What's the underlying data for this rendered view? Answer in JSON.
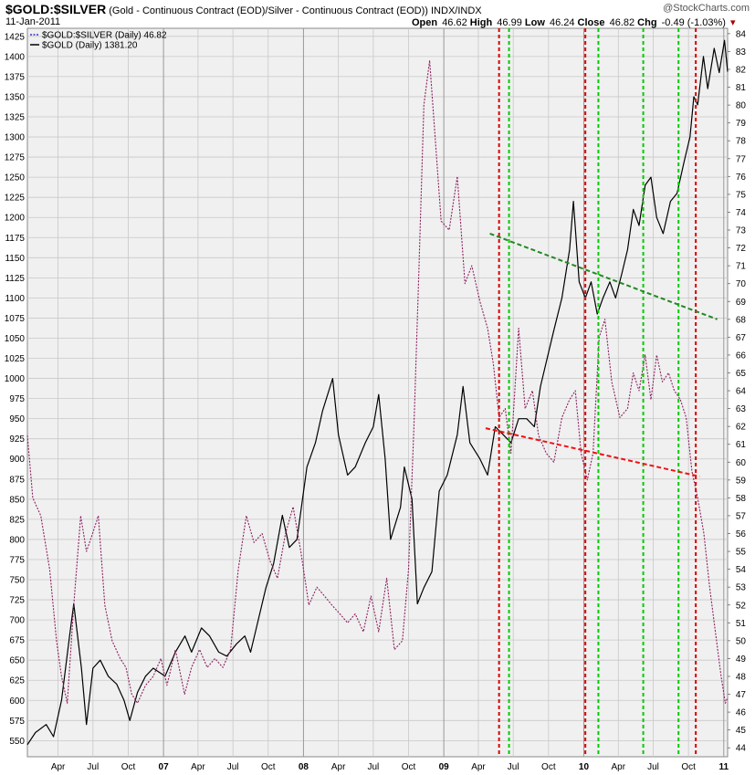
{
  "header": {
    "symbol": "$GOLD:$SILVER",
    "description": "(Gold - Continuous Contract (EOD)/Silver - Continuous Contract (EOD))",
    "exchange": "INDX/INDX",
    "date": "11-Jan-2011",
    "watermark": "@StockCharts.com",
    "ohlc": {
      "open_label": "Open",
      "open": "46.62",
      "high_label": "High",
      "high": "46.99",
      "low_label": "Low",
      "low": "46.24",
      "close_label": "Close",
      "close": "46.82",
      "chg_label": "Chg",
      "chg": "-0.49 (-1.03%)"
    }
  },
  "legend": [
    {
      "text": "$GOLD:$SILVER (Daily) 46.82",
      "color": "#3333cc",
      "style": "dotted"
    },
    {
      "text": "$GOLD (Daily) 1381.20",
      "color": "#000000",
      "style": "solid"
    }
  ],
  "colors": {
    "ratio_line": "#8b2060",
    "gold_line": "#000000",
    "red_vline": "#dd0000",
    "green_vline": "#00cc00",
    "green_trend": "#228822",
    "red_trend": "#ee1111",
    "grid": "#c8c8c8",
    "panel_bg": "#f0f0f0",
    "axis_text": "#000000"
  },
  "chart_data": {
    "type": "line",
    "title": "$GOLD:$SILVER",
    "xlabel": "",
    "ylabel": "",
    "grid": true,
    "legend_position": "top-left",
    "x_ticks": [
      "Apr",
      "Jul",
      "Oct",
      "07",
      "Apr",
      "Jul",
      "Oct",
      "08",
      "Apr",
      "Jul",
      "Oct",
      "09",
      "Apr",
      "Jul",
      "Oct",
      "10",
      "Apr",
      "Jul",
      "Oct",
      "11"
    ],
    "x_tick_dates": [
      "2006-04-01",
      "2006-07-01",
      "2006-10-01",
      "2007-01-01",
      "2007-04-01",
      "2007-07-01",
      "2007-10-01",
      "2008-01-01",
      "2008-04-01",
      "2008-07-01",
      "2008-10-01",
      "2009-01-01",
      "2009-04-01",
      "2009-07-01",
      "2009-10-01",
      "2010-01-01",
      "2010-04-01",
      "2010-07-01",
      "2010-10-01",
      "2011-01-01"
    ],
    "x_range": [
      "2006-01-11",
      "2011-01-11"
    ],
    "y_left": {
      "label": "$GOLD",
      "range": [
        530,
        1435
      ],
      "ticks": [
        550,
        575,
        600,
        625,
        650,
        675,
        700,
        725,
        750,
        775,
        800,
        825,
        850,
        875,
        900,
        925,
        950,
        975,
        1000,
        1025,
        1050,
        1075,
        1100,
        1125,
        1150,
        1175,
        1200,
        1225,
        1250,
        1275,
        1300,
        1325,
        1350,
        1375,
        1400,
        1425
      ]
    },
    "y_right": {
      "label": "$GOLD:$SILVER",
      "range": [
        43.5,
        84.3
      ],
      "ticks": [
        44,
        45,
        46,
        47,
        48,
        49,
        50,
        51,
        52,
        53,
        54,
        55,
        56,
        57,
        58,
        59,
        60,
        61,
        62,
        63,
        64,
        65,
        66,
        67,
        68,
        69,
        70,
        71,
        72,
        73,
        74,
        75,
        76,
        77,
        78,
        79,
        80,
        81,
        82,
        83,
        84
      ]
    },
    "series": [
      {
        "name": "$GOLD (Daily) 1381.20",
        "axis": "left",
        "x": [
          "2006-01-11",
          "2006-02-01",
          "2006-03-01",
          "2006-03-20",
          "2006-04-10",
          "2006-05-01",
          "2006-05-12",
          "2006-06-01",
          "2006-06-14",
          "2006-07-01",
          "2006-07-20",
          "2006-08-10",
          "2006-09-01",
          "2006-09-20",
          "2006-10-05",
          "2006-10-25",
          "2006-11-15",
          "2006-12-05",
          "2007-01-05",
          "2007-02-01",
          "2007-02-26",
          "2007-03-15",
          "2007-04-10",
          "2007-05-01",
          "2007-05-25",
          "2007-06-15",
          "2007-07-10",
          "2007-08-01",
          "2007-08-16",
          "2007-09-05",
          "2007-09-25",
          "2007-10-15",
          "2007-11-07",
          "2007-11-25",
          "2007-12-15",
          "2008-01-10",
          "2008-02-01",
          "2008-02-20",
          "2008-03-17",
          "2008-04-01",
          "2008-04-25",
          "2008-05-15",
          "2008-06-10",
          "2008-07-01",
          "2008-07-15",
          "2008-08-01",
          "2008-08-15",
          "2008-09-10",
          "2008-09-20",
          "2008-10-10",
          "2008-10-24",
          "2008-11-10",
          "2008-12-01",
          "2008-12-20",
          "2009-01-10",
          "2009-02-05",
          "2009-02-20",
          "2009-03-10",
          "2009-04-05",
          "2009-04-25",
          "2009-05-15",
          "2009-06-05",
          "2009-06-25",
          "2009-07-15",
          "2009-08-05",
          "2009-08-25",
          "2009-09-10",
          "2009-09-25",
          "2009-10-15",
          "2009-11-05",
          "2009-11-25",
          "2009-12-05",
          "2009-12-20",
          "2010-01-05",
          "2010-01-20",
          "2010-02-05",
          "2010-02-20",
          "2010-03-10",
          "2010-03-25",
          "2010-04-10",
          "2010-04-25",
          "2010-05-10",
          "2010-05-25",
          "2010-06-10",
          "2010-06-25",
          "2010-07-10",
          "2010-07-27",
          "2010-08-15",
          "2010-09-01",
          "2010-09-20",
          "2010-10-05",
          "2010-10-15",
          "2010-10-25",
          "2010-11-09",
          "2010-11-20",
          "2010-12-07",
          "2010-12-20",
          "2011-01-03",
          "2011-01-11"
        ],
        "values": [
          545,
          560,
          570,
          555,
          600,
          680,
          720,
          640,
          570,
          640,
          650,
          630,
          620,
          600,
          575,
          610,
          630,
          640,
          630,
          660,
          680,
          660,
          690,
          680,
          660,
          655,
          670,
          680,
          660,
          700,
          740,
          770,
          830,
          790,
          800,
          890,
          920,
          960,
          1000,
          930,
          880,
          890,
          920,
          940,
          980,
          900,
          800,
          840,
          890,
          850,
          720,
          740,
          760,
          860,
          880,
          930,
          990,
          920,
          900,
          880,
          940,
          930,
          920,
          950,
          950,
          940,
          990,
          1020,
          1060,
          1100,
          1160,
          1220,
          1120,
          1100,
          1120,
          1080,
          1100,
          1120,
          1100,
          1130,
          1160,
          1210,
          1190,
          1240,
          1250,
          1200,
          1180,
          1220,
          1230,
          1270,
          1300,
          1350,
          1340,
          1400,
          1360,
          1410,
          1380,
          1420,
          1381
        ]
      },
      {
        "name": "$GOLD:$SILVER (Daily) 46.82",
        "axis": "right",
        "x": [
          "2006-01-11",
          "2006-01-25",
          "2006-02-15",
          "2006-03-10",
          "2006-03-28",
          "2006-04-10",
          "2006-04-25",
          "2006-05-12",
          "2006-05-30",
          "2006-06-14",
          "2006-06-30",
          "2006-07-15",
          "2006-08-01",
          "2006-08-20",
          "2006-09-10",
          "2006-09-25",
          "2006-10-10",
          "2006-10-25",
          "2006-11-15",
          "2006-12-05",
          "2006-12-25",
          "2007-01-10",
          "2007-02-01",
          "2007-02-25",
          "2007-03-15",
          "2007-04-05",
          "2007-04-25",
          "2007-05-15",
          "2007-06-05",
          "2007-06-25",
          "2007-07-15",
          "2007-08-05",
          "2007-08-25",
          "2007-09-15",
          "2007-10-05",
          "2007-10-25",
          "2007-11-15",
          "2007-12-05",
          "2007-12-25",
          "2008-01-15",
          "2008-02-05",
          "2008-02-25",
          "2008-03-15",
          "2008-04-05",
          "2008-04-25",
          "2008-05-15",
          "2008-06-05",
          "2008-06-25",
          "2008-07-15",
          "2008-08-05",
          "2008-08-25",
          "2008-09-15",
          "2008-10-01",
          "2008-10-15",
          "2008-10-27",
          "2008-11-10",
          "2008-11-25",
          "2008-12-10",
          "2008-12-25",
          "2009-01-15",
          "2009-02-05",
          "2009-02-25",
          "2009-03-15",
          "2009-04-05",
          "2009-04-25",
          "2009-05-10",
          "2009-05-25",
          "2009-06-10",
          "2009-06-25",
          "2009-07-15",
          "2009-08-01",
          "2009-08-20",
          "2009-09-05",
          "2009-09-25",
          "2009-10-15",
          "2009-11-05",
          "2009-11-25",
          "2009-12-10",
          "2009-12-25",
          "2010-01-10",
          "2010-01-25",
          "2010-02-10",
          "2010-02-25",
          "2010-03-15",
          "2010-04-05",
          "2010-04-25",
          "2010-05-10",
          "2010-05-25",
          "2010-06-10",
          "2010-06-25",
          "2010-07-10",
          "2010-07-25",
          "2010-08-10",
          "2010-08-25",
          "2010-09-10",
          "2010-09-25",
          "2010-10-10",
          "2010-10-25",
          "2010-11-10",
          "2010-11-25",
          "2010-12-10",
          "2010-12-25",
          "2011-01-05",
          "2011-01-11"
        ],
        "values": [
          61.5,
          58.0,
          57.0,
          54.0,
          50.0,
          48.0,
          46.5,
          52.0,
          57.0,
          55.0,
          56.0,
          57.0,
          52.0,
          50.0,
          49.0,
          48.5,
          47.0,
          46.5,
          47.5,
          48.0,
          49.0,
          47.5,
          49.5,
          47.0,
          48.5,
          49.5,
          48.5,
          49.0,
          48.5,
          49.5,
          54.0,
          57.0,
          55.5,
          56.0,
          54.5,
          53.5,
          56.0,
          57.5,
          55.0,
          52.0,
          53.0,
          52.5,
          52.0,
          51.5,
          51.0,
          51.5,
          50.5,
          52.5,
          50.5,
          53.5,
          49.5,
          50.0,
          54.0,
          62.0,
          70.0,
          80.0,
          82.5,
          78.0,
          73.5,
          73.0,
          76.0,
          70.0,
          71.0,
          69.0,
          67.5,
          65.5,
          62.5,
          63.0,
          60.5,
          67.5,
          63.0,
          64.0,
          61.5,
          60.5,
          60.0,
          62.5,
          63.5,
          64.0,
          60.5,
          59.0,
          60.5,
          67.0,
          68.0,
          64.5,
          62.5,
          63.0,
          65.0,
          64.0,
          66.0,
          63.5,
          66.0,
          64.5,
          65.0,
          64.0,
          63.5,
          62.5,
          59.5,
          58.0,
          56.0,
          53.0,
          50.5,
          48.0,
          46.5,
          46.82
        ]
      }
    ],
    "annotations": {
      "red_vertical_dates": [
        "2009-05-25",
        "2010-01-05",
        "2010-10-20"
      ],
      "green_vertical_dates": [
        "2009-06-20",
        "2010-02-08",
        "2010-06-05",
        "2010-09-05"
      ],
      "green_trendline": {
        "start": [
          "2009-05-01",
          72.8
        ],
        "end": [
          "2010-12-15",
          68.0
        ],
        "axis": "right"
      },
      "red_trendline": {
        "start": [
          "2009-04-20",
          61.9
        ],
        "end": [
          "2010-10-30",
          59.2
        ],
        "axis": "right"
      }
    }
  }
}
